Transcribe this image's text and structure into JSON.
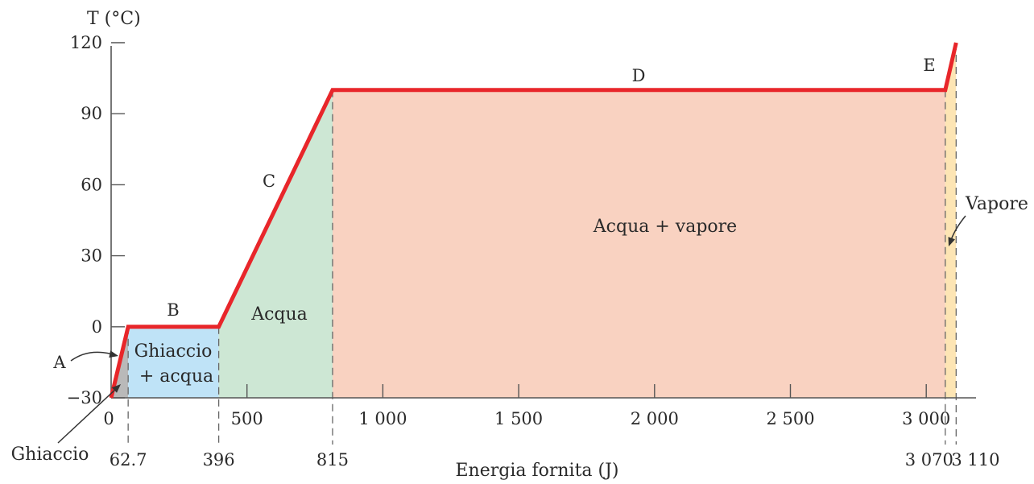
{
  "chart_data": {
    "type": "line",
    "xlabel": "Energia fornita (J)",
    "ylabel": "T (°C)",
    "xlim": [
      0,
      3200
    ],
    "ylim": [
      -30,
      120
    ],
    "x_ticks": [
      {
        "value": 0,
        "label": "0"
      },
      {
        "value": 500,
        "label": "500"
      },
      {
        "value": 1000,
        "label": "1 000"
      },
      {
        "value": 1500,
        "label": "1 500"
      },
      {
        "value": 2000,
        "label": "2 000"
      },
      {
        "value": 2500,
        "label": "2 500"
      },
      {
        "value": 3000,
        "label": "3 000"
      }
    ],
    "y_ticks": [
      {
        "value": -30,
        "label": "−30"
      },
      {
        "value": 0,
        "label": "0"
      },
      {
        "value": 30,
        "label": "30"
      },
      {
        "value": 60,
        "label": "60"
      },
      {
        "value": 90,
        "label": "90"
      },
      {
        "value": 120,
        "label": "120"
      }
    ],
    "series": [
      {
        "x": [
          0,
          62.7,
          396,
          815,
          3070,
          3110
        ],
        "y": [
          -30,
          0,
          0,
          100,
          100,
          120
        ],
        "color": "#e8262a"
      }
    ],
    "marked_x": [
      {
        "value": 62.7,
        "label": "62.7"
      },
      {
        "value": 396,
        "label": "396"
      },
      {
        "value": 815,
        "label": "815"
      },
      {
        "value": 3070,
        "label": "3 070"
      },
      {
        "value": 3110,
        "label": "3 110"
      }
    ],
    "segment_labels": [
      {
        "text": "A",
        "x": 31
      },
      {
        "text": "B",
        "x": 229
      },
      {
        "text": "C",
        "x": 605
      },
      {
        "text": "D",
        "x": 1943
      },
      {
        "text": "E",
        "x": 3090
      }
    ],
    "regions": [
      {
        "x0": 0,
        "x1": 62.7,
        "color": "#b9b9b9",
        "label": "Ghiaccio"
      },
      {
        "x0": 62.7,
        "x1": 396,
        "color": "#bfe3f7",
        "label_lines": [
          "Ghiaccio",
          "+ acqua"
        ]
      },
      {
        "x0": 396,
        "x1": 815,
        "color": "#cde7d4",
        "label": "Acqua"
      },
      {
        "x0": 815,
        "x1": 3070,
        "color": "#f9d2c1",
        "label": "Acqua + vapore"
      },
      {
        "x0": 3070,
        "x1": 3110,
        "color": "#fde5b4",
        "label": "Vapore"
      }
    ]
  }
}
